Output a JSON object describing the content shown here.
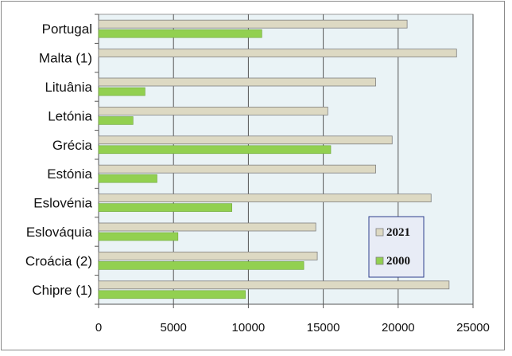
{
  "chart_data": {
    "type": "bar",
    "orientation": "horizontal",
    "title": "",
    "xlabel": "",
    "ylabel": "",
    "xlim": [
      0,
      25000
    ],
    "x_ticks": [
      0,
      5000,
      10000,
      15000,
      20000,
      25000
    ],
    "categories": [
      "Portugal",
      "Malta (1)",
      "Lituânia",
      "Letónia",
      "Grécia",
      "Estónia",
      "Eslovénia",
      "Eslováquia",
      "Croácia (2)",
      "Chipre (1)"
    ],
    "series": [
      {
        "name": "2021",
        "color": "#ddd9c3",
        "values": [
          20600,
          23900,
          18500,
          15300,
          19600,
          18500,
          22200,
          14500,
          14600,
          23400
        ]
      },
      {
        "name": "2000",
        "color": "#92d050",
        "values": [
          10900,
          null,
          3100,
          2300,
          15500,
          3900,
          8900,
          5300,
          13700,
          9800
        ]
      }
    ],
    "grid": "vertical",
    "plot_background": "#eaf3f6",
    "legend_position": "lower-right inside"
  }
}
